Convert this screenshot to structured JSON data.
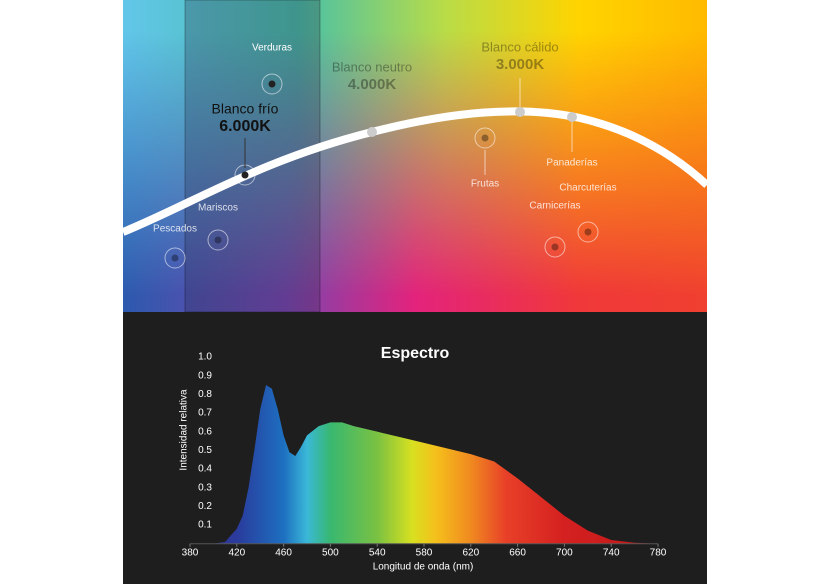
{
  "diagram": {
    "labels": [
      "Verduras",
      "Blanco frío",
      "6.000K",
      "Blanco neutro",
      "4.000K",
      "Blanco cálido",
      "3.000K",
      "Panaderías",
      "Frutas",
      "Charcuterías",
      "Carnicerías",
      "Mariscos",
      "Pescados"
    ]
  },
  "chart_data": {
    "type": "area",
    "title": "Espectro",
    "xlabel": "Longitud de onda (nm)",
    "ylabel": "Intensidad relativa",
    "x": [
      380,
      400,
      410,
      420,
      425,
      430,
      435,
      440,
      445,
      450,
      455,
      460,
      465,
      470,
      475,
      480,
      490,
      500,
      510,
      520,
      540,
      560,
      580,
      600,
      620,
      640,
      660,
      680,
      700,
      720,
      740,
      760,
      780
    ],
    "values": [
      0,
      0,
      0.01,
      0.08,
      0.15,
      0.3,
      0.5,
      0.72,
      0.85,
      0.83,
      0.72,
      0.58,
      0.49,
      0.47,
      0.52,
      0.58,
      0.63,
      0.65,
      0.65,
      0.63,
      0.6,
      0.57,
      0.54,
      0.51,
      0.48,
      0.44,
      0.35,
      0.25,
      0.15,
      0.07,
      0.02,
      0.005,
      0
    ],
    "xlim": [
      380,
      780
    ],
    "xticks": [
      380,
      420,
      460,
      500,
      540,
      580,
      620,
      660,
      700,
      740,
      780
    ],
    "ylim": [
      0,
      1
    ],
    "yticks": [
      0.1,
      0.2,
      0.3,
      0.4,
      0.5,
      0.6,
      0.7,
      0.8,
      0.9,
      {
        "value": 1,
        "label": "1.0"
      }
    ]
  }
}
